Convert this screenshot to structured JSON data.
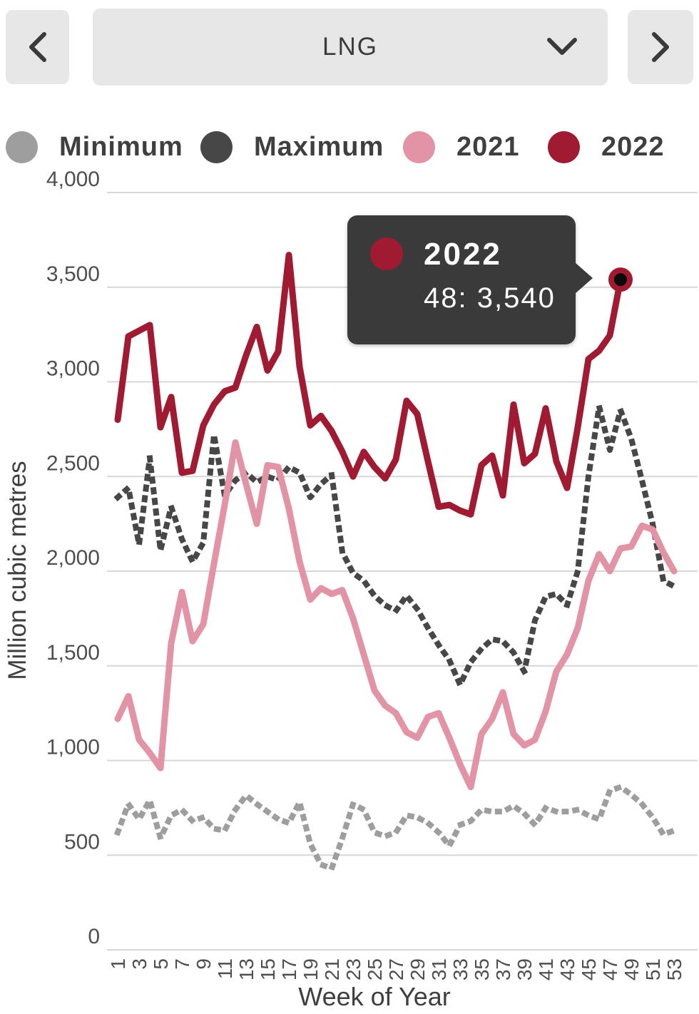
{
  "toolbar": {
    "prev_icon": "chevron-left",
    "next_icon": "chevron-right",
    "dropdown_value": "LNG",
    "dropdown_icon": "chevron-down"
  },
  "legend": {
    "position": "top",
    "items": [
      {
        "label": "Minimum",
        "color": "#9e9e9e"
      },
      {
        "label": "Maximum",
        "color": "#474747"
      },
      {
        "label": "2021",
        "color": "#e294a6"
      },
      {
        "label": "2022",
        "color": "#a01a32"
      }
    ]
  },
  "tooltip": {
    "series": "2022",
    "value_text": "48: 3,540",
    "dot_color": "#a01a32",
    "background": "#3a3a3a"
  },
  "axes": {
    "ylabel": "Million cubic metres",
    "xlabel": "Week of Year"
  },
  "chart_data": {
    "type": "line",
    "title": "",
    "xlabel": "Week of Year",
    "ylabel": "Million cubic metres",
    "ylim": [
      0,
      4000
    ],
    "ytick_step": 500,
    "x_tick_step": 2,
    "grid": true,
    "legend_position": "top",
    "grid_color": "#d7d7d7",
    "tick_color": "#4f4f4f",
    "x": [
      1,
      2,
      3,
      4,
      5,
      6,
      7,
      8,
      9,
      10,
      11,
      12,
      13,
      14,
      15,
      16,
      17,
      18,
      19,
      20,
      21,
      22,
      23,
      24,
      25,
      26,
      27,
      28,
      29,
      30,
      31,
      32,
      33,
      34,
      35,
      36,
      37,
      38,
      39,
      40,
      41,
      42,
      43,
      44,
      45,
      46,
      47,
      48,
      49,
      50,
      51,
      52,
      53
    ],
    "series": [
      {
        "name": "Minimum",
        "color": "#9e9e9e",
        "style": "dotted",
        "values": [
          620,
          770,
          690,
          790,
          590,
          710,
          740,
          680,
          700,
          640,
          630,
          740,
          815,
          770,
          730,
          690,
          670,
          780,
          560,
          450,
          430,
          590,
          770,
          740,
          620,
          600,
          620,
          710,
          700,
          670,
          620,
          550,
          660,
          680,
          740,
          730,
          730,
          760,
          720,
          660,
          750,
          730,
          730,
          740,
          710,
          690,
          840,
          860,
          820,
          770,
          700,
          610,
          630
        ]
      },
      {
        "name": "Maximum",
        "color": "#474747",
        "style": "dotted",
        "values": [
          2390,
          2440,
          2140,
          2600,
          2110,
          2340,
          2170,
          2050,
          2150,
          2720,
          2400,
          2480,
          2520,
          2470,
          2500,
          2480,
          2550,
          2520,
          2390,
          2460,
          2510,
          2100,
          1990,
          1950,
          1870,
          1820,
          1790,
          1870,
          1800,
          1700,
          1610,
          1530,
          1400,
          1520,
          1590,
          1640,
          1630,
          1570,
          1470,
          1740,
          1865,
          1880,
          1820,
          2000,
          2500,
          2870,
          2640,
          2850,
          2700,
          2480,
          2250,
          1950,
          1920
        ]
      },
      {
        "name": "2021",
        "color": "#e294a6",
        "style": "solid",
        "values": [
          1220,
          1340,
          1110,
          1040,
          960,
          1620,
          1890,
          1630,
          1720,
          2040,
          2350,
          2680,
          2460,
          2250,
          2560,
          2550,
          2330,
          2050,
          1850,
          1910,
          1880,
          1900,
          1750,
          1560,
          1370,
          1290,
          1250,
          1150,
          1120,
          1230,
          1250,
          1120,
          980,
          860,
          1140,
          1220,
          1360,
          1140,
          1080,
          1110,
          1260,
          1470,
          1560,
          1700,
          1950,
          2090,
          2000,
          2120,
          2130,
          2240,
          2220,
          2100,
          2000
        ]
      },
      {
        "name": "2022",
        "color": "#a01a32",
        "style": "solid",
        "values": [
          2800,
          3240,
          3270,
          3300,
          2760,
          2920,
          2520,
          2530,
          2770,
          2880,
          2950,
          2970,
          3140,
          3290,
          3060,
          3160,
          3670,
          3080,
          2770,
          2820,
          2740,
          2630,
          2500,
          2630,
          2550,
          2490,
          2590,
          2900,
          2830,
          2580,
          2340,
          2350,
          2320,
          2300,
          2560,
          2610,
          2400,
          2880,
          2570,
          2620,
          2860,
          2580,
          2440,
          2760,
          3120,
          3165,
          3245,
          3540
        ]
      }
    ],
    "highlight": {
      "series": "2022",
      "week": 48,
      "value": 3540
    }
  }
}
